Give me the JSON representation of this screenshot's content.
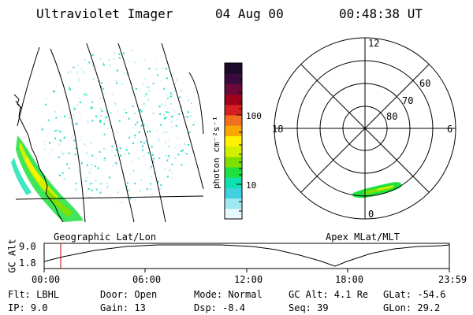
{
  "header": {
    "instrument": "Ultraviolet Imager",
    "date": "04 Aug 00",
    "time": "00:48:38 UT"
  },
  "colorbar": {
    "unit_label": "photon cm⁻²s⁻¹",
    "tick_100": "100",
    "tick_10": "10",
    "colors": [
      "#1b0a2a",
      "#3a0a40",
      "#6b0a3a",
      "#a0001a",
      "#d42020",
      "#f07020",
      "#f8a800",
      "#fff100",
      "#d0f000",
      "#7fe000",
      "#20e040",
      "#10e0b0",
      "#40d0e0",
      "#a0e8f0",
      "#e8f8ff"
    ]
  },
  "left_panel": {
    "projection_label": "Geographic Lat/Lon"
  },
  "right_panel": {
    "projection_label": "Apex MLat/MLT",
    "mlt_labels": {
      "top": "12",
      "left": "18",
      "right": "6",
      "bottom": "0"
    },
    "lat_labels": [
      "60",
      "70",
      "80"
    ]
  },
  "altitude_plot": {
    "axis_label": "GC Alt",
    "y_labels": [
      "9.0",
      "1.8"
    ],
    "x_labels": [
      "00:00",
      "06:00",
      "12:00",
      "18:00",
      "23:59"
    ],
    "marker_color": "#c00000"
  },
  "info": {
    "flt": "Flt: LBHL",
    "ip": "IP:  9.0",
    "door": "Door: Open",
    "gain": "Gain: 13",
    "mode": "Mode: Normal",
    "dsp": "Dsp:   -8.4",
    "gc_alt": "GC Alt: 4.1 Re",
    "seq": "Seq: 39",
    "glat": "GLat:  -54.6",
    "glon": "GLon:  29.2"
  }
}
